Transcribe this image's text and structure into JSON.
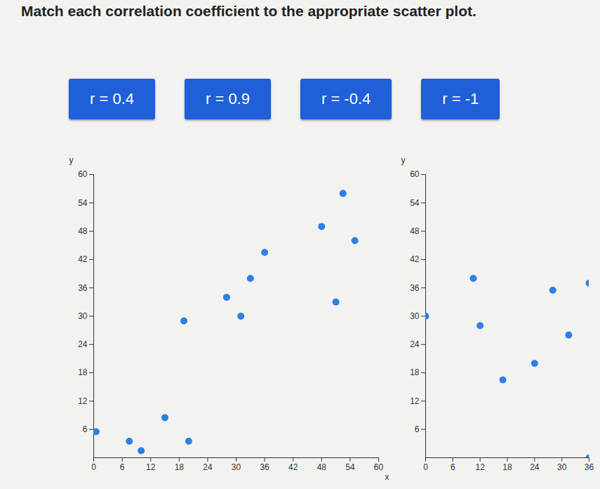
{
  "title": "Match each correlation coefficient to the appropriate scatter plot.",
  "buttons": [
    "r = 0.4",
    "r = 0.9",
    "r = -0.4",
    "r = -1"
  ],
  "chart_data": [
    {
      "type": "scatter",
      "color": "#2f7fe0",
      "x_label": "x",
      "y_label": "y",
      "x": [
        52.5,
        48,
        55,
        36,
        33,
        28,
        51,
        31,
        19,
        15,
        0.5,
        7.5,
        10,
        20
      ],
      "values": [
        56,
        49,
        46,
        43.5,
        38,
        34,
        33,
        30,
        29,
        8.5,
        5.5,
        3.5,
        1.5,
        3.5
      ],
      "xlim": [
        0,
        60
      ],
      "xticks": [
        0,
        6,
        12,
        18,
        24,
        30,
        36,
        42,
        48,
        54,
        60
      ],
      "ylim": [
        0,
        60
      ],
      "yticks": [
        6,
        12,
        18,
        24,
        30,
        36,
        42,
        48,
        54,
        60
      ],
      "grid": false
    },
    {
      "type": "scatter",
      "color": "#2f7fe0",
      "y_label": "y",
      "x": [
        0,
        10.5,
        28,
        36,
        12,
        31.5,
        24,
        17,
        36
      ],
      "values": [
        30,
        38,
        35.5,
        37,
        28,
        26,
        20,
        16.5,
        0
      ],
      "xlim": [
        0,
        36
      ],
      "xticks": [
        0,
        6,
        12,
        18,
        24,
        30,
        36
      ],
      "ylim": [
        0,
        60
      ],
      "yticks": [
        6,
        12,
        18,
        24,
        30,
        36,
        42,
        48,
        54,
        60
      ],
      "grid": false
    }
  ]
}
